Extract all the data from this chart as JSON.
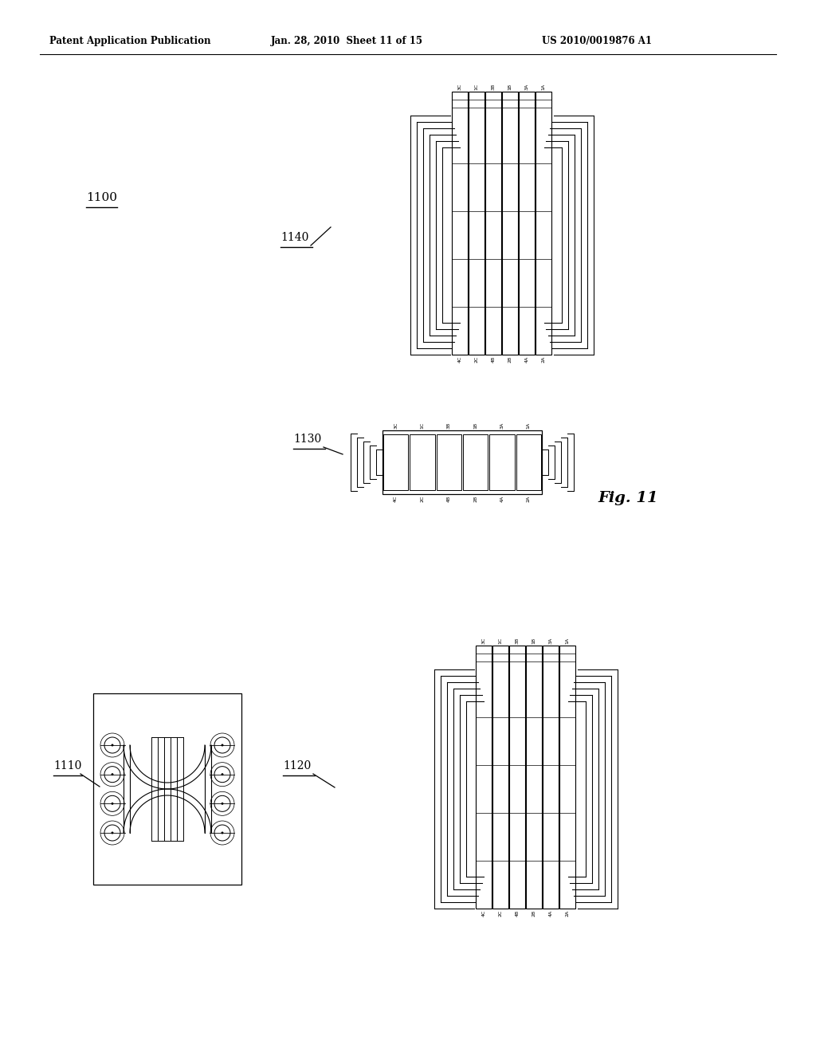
{
  "bg_color": "#ffffff",
  "header_left": "Patent Application Publication",
  "header_mid": "Jan. 28, 2010  Sheet 11 of 15",
  "header_right": "US 2010/0019876 A1",
  "fig_label": "Fig. 11",
  "label_1100": "1100",
  "label_1140": "1140",
  "label_1130": "1130",
  "label_1110": "1110",
  "label_1120": "1120",
  "col_labels_top": [
    "3C",
    "1C",
    "3B",
    "1B",
    "3A",
    "1A"
  ],
  "col_labels_bot": [
    "4C",
    "2C",
    "4B",
    "2B",
    "4A",
    "2A"
  ]
}
